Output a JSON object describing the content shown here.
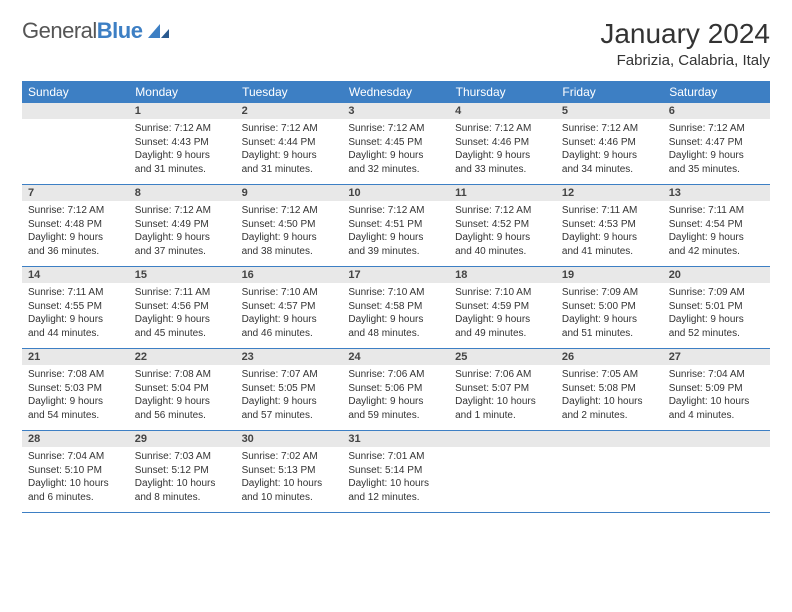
{
  "brand": {
    "name_part1": "General",
    "name_part2": "Blue"
  },
  "title": "January 2024",
  "location": "Fabrizia, Calabria, Italy",
  "colors": {
    "header_bg": "#3d7fc4",
    "daynum_bg": "#e8e8e8",
    "text": "#333333",
    "border": "#3d7fc4"
  },
  "weekdays": [
    "Sunday",
    "Monday",
    "Tuesday",
    "Wednesday",
    "Thursday",
    "Friday",
    "Saturday"
  ],
  "weeks": [
    [
      null,
      {
        "n": "1",
        "sr": "Sunrise: 7:12 AM",
        "ss": "Sunset: 4:43 PM",
        "d1": "Daylight: 9 hours",
        "d2": "and 31 minutes."
      },
      {
        "n": "2",
        "sr": "Sunrise: 7:12 AM",
        "ss": "Sunset: 4:44 PM",
        "d1": "Daylight: 9 hours",
        "d2": "and 31 minutes."
      },
      {
        "n": "3",
        "sr": "Sunrise: 7:12 AM",
        "ss": "Sunset: 4:45 PM",
        "d1": "Daylight: 9 hours",
        "d2": "and 32 minutes."
      },
      {
        "n": "4",
        "sr": "Sunrise: 7:12 AM",
        "ss": "Sunset: 4:46 PM",
        "d1": "Daylight: 9 hours",
        "d2": "and 33 minutes."
      },
      {
        "n": "5",
        "sr": "Sunrise: 7:12 AM",
        "ss": "Sunset: 4:46 PM",
        "d1": "Daylight: 9 hours",
        "d2": "and 34 minutes."
      },
      {
        "n": "6",
        "sr": "Sunrise: 7:12 AM",
        "ss": "Sunset: 4:47 PM",
        "d1": "Daylight: 9 hours",
        "d2": "and 35 minutes."
      }
    ],
    [
      {
        "n": "7",
        "sr": "Sunrise: 7:12 AM",
        "ss": "Sunset: 4:48 PM",
        "d1": "Daylight: 9 hours",
        "d2": "and 36 minutes."
      },
      {
        "n": "8",
        "sr": "Sunrise: 7:12 AM",
        "ss": "Sunset: 4:49 PM",
        "d1": "Daylight: 9 hours",
        "d2": "and 37 minutes."
      },
      {
        "n": "9",
        "sr": "Sunrise: 7:12 AM",
        "ss": "Sunset: 4:50 PM",
        "d1": "Daylight: 9 hours",
        "d2": "and 38 minutes."
      },
      {
        "n": "10",
        "sr": "Sunrise: 7:12 AM",
        "ss": "Sunset: 4:51 PM",
        "d1": "Daylight: 9 hours",
        "d2": "and 39 minutes."
      },
      {
        "n": "11",
        "sr": "Sunrise: 7:12 AM",
        "ss": "Sunset: 4:52 PM",
        "d1": "Daylight: 9 hours",
        "d2": "and 40 minutes."
      },
      {
        "n": "12",
        "sr": "Sunrise: 7:11 AM",
        "ss": "Sunset: 4:53 PM",
        "d1": "Daylight: 9 hours",
        "d2": "and 41 minutes."
      },
      {
        "n": "13",
        "sr": "Sunrise: 7:11 AM",
        "ss": "Sunset: 4:54 PM",
        "d1": "Daylight: 9 hours",
        "d2": "and 42 minutes."
      }
    ],
    [
      {
        "n": "14",
        "sr": "Sunrise: 7:11 AM",
        "ss": "Sunset: 4:55 PM",
        "d1": "Daylight: 9 hours",
        "d2": "and 44 minutes."
      },
      {
        "n": "15",
        "sr": "Sunrise: 7:11 AM",
        "ss": "Sunset: 4:56 PM",
        "d1": "Daylight: 9 hours",
        "d2": "and 45 minutes."
      },
      {
        "n": "16",
        "sr": "Sunrise: 7:10 AM",
        "ss": "Sunset: 4:57 PM",
        "d1": "Daylight: 9 hours",
        "d2": "and 46 minutes."
      },
      {
        "n": "17",
        "sr": "Sunrise: 7:10 AM",
        "ss": "Sunset: 4:58 PM",
        "d1": "Daylight: 9 hours",
        "d2": "and 48 minutes."
      },
      {
        "n": "18",
        "sr": "Sunrise: 7:10 AM",
        "ss": "Sunset: 4:59 PM",
        "d1": "Daylight: 9 hours",
        "d2": "and 49 minutes."
      },
      {
        "n": "19",
        "sr": "Sunrise: 7:09 AM",
        "ss": "Sunset: 5:00 PM",
        "d1": "Daylight: 9 hours",
        "d2": "and 51 minutes."
      },
      {
        "n": "20",
        "sr": "Sunrise: 7:09 AM",
        "ss": "Sunset: 5:01 PM",
        "d1": "Daylight: 9 hours",
        "d2": "and 52 minutes."
      }
    ],
    [
      {
        "n": "21",
        "sr": "Sunrise: 7:08 AM",
        "ss": "Sunset: 5:03 PM",
        "d1": "Daylight: 9 hours",
        "d2": "and 54 minutes."
      },
      {
        "n": "22",
        "sr": "Sunrise: 7:08 AM",
        "ss": "Sunset: 5:04 PM",
        "d1": "Daylight: 9 hours",
        "d2": "and 56 minutes."
      },
      {
        "n": "23",
        "sr": "Sunrise: 7:07 AM",
        "ss": "Sunset: 5:05 PM",
        "d1": "Daylight: 9 hours",
        "d2": "and 57 minutes."
      },
      {
        "n": "24",
        "sr": "Sunrise: 7:06 AM",
        "ss": "Sunset: 5:06 PM",
        "d1": "Daylight: 9 hours",
        "d2": "and 59 minutes."
      },
      {
        "n": "25",
        "sr": "Sunrise: 7:06 AM",
        "ss": "Sunset: 5:07 PM",
        "d1": "Daylight: 10 hours",
        "d2": "and 1 minute."
      },
      {
        "n": "26",
        "sr": "Sunrise: 7:05 AM",
        "ss": "Sunset: 5:08 PM",
        "d1": "Daylight: 10 hours",
        "d2": "and 2 minutes."
      },
      {
        "n": "27",
        "sr": "Sunrise: 7:04 AM",
        "ss": "Sunset: 5:09 PM",
        "d1": "Daylight: 10 hours",
        "d2": "and 4 minutes."
      }
    ],
    [
      {
        "n": "28",
        "sr": "Sunrise: 7:04 AM",
        "ss": "Sunset: 5:10 PM",
        "d1": "Daylight: 10 hours",
        "d2": "and 6 minutes."
      },
      {
        "n": "29",
        "sr": "Sunrise: 7:03 AM",
        "ss": "Sunset: 5:12 PM",
        "d1": "Daylight: 10 hours",
        "d2": "and 8 minutes."
      },
      {
        "n": "30",
        "sr": "Sunrise: 7:02 AM",
        "ss": "Sunset: 5:13 PM",
        "d1": "Daylight: 10 hours",
        "d2": "and 10 minutes."
      },
      {
        "n": "31",
        "sr": "Sunrise: 7:01 AM",
        "ss": "Sunset: 5:14 PM",
        "d1": "Daylight: 10 hours",
        "d2": "and 12 minutes."
      },
      null,
      null,
      null
    ]
  ]
}
